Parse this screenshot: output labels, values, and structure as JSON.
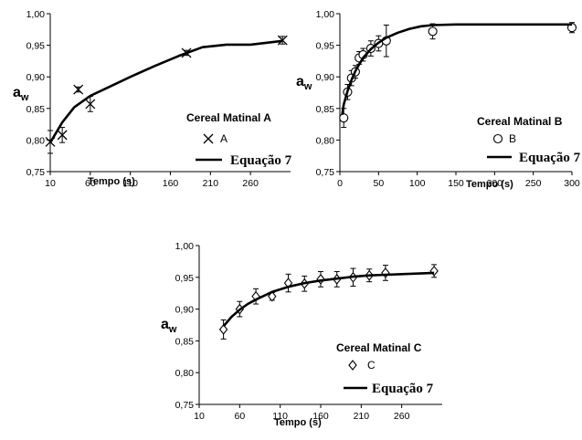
{
  "chart_data": [
    {
      "panel": "A",
      "type": "scatter",
      "xlabel": "Tempo (s)",
      "ylabel_main": "a",
      "ylabel_sub": "w",
      "xlim": [
        10,
        310
      ],
      "ylim": [
        0.75,
        1.0
      ],
      "xticks": [
        "10",
        "60",
        "110",
        "160",
        "210",
        "260"
      ],
      "yticks": [
        "0,75",
        "0,80",
        "0,85",
        "0,90",
        "0,95",
        "1,00"
      ],
      "legend_title": "Cereal Matinal A",
      "marker": "x",
      "series": [
        {
          "name": "A",
          "kind": "points",
          "x": [
            10,
            25,
            45,
            60,
            180,
            300
          ],
          "y": [
            0.797,
            0.808,
            0.88,
            0.857,
            0.938,
            0.958
          ],
          "err": [
            0.018,
            0.012,
            0.004,
            0.012,
            0.004,
            0.006
          ]
        },
        {
          "name": "Equação 7",
          "kind": "line",
          "x": [
            10,
            25,
            40,
            60,
            80,
            110,
            140,
            170,
            200,
            230,
            260,
            300
          ],
          "y": [
            0.796,
            0.828,
            0.852,
            0.87,
            0.882,
            0.9,
            0.917,
            0.933,
            0.947,
            0.951,
            0.951,
            0.957
          ]
        }
      ]
    },
    {
      "panel": "B",
      "type": "scatter",
      "xlabel": "Tempo (s)",
      "ylabel_main": "a",
      "ylabel_sub": "w",
      "xlim": [
        0,
        300
      ],
      "ylim": [
        0.75,
        1.0
      ],
      "xticks": [
        "0",
        "50",
        "100",
        "150",
        "200",
        "250",
        "300"
      ],
      "yticks": [
        "0,75",
        "0,80",
        "0,85",
        "0,90",
        "0,95",
        "1,00"
      ],
      "legend_title": "Cereal Matinal B",
      "marker": "o",
      "series": [
        {
          "name": "B",
          "kind": "points",
          "x": [
            5,
            10,
            15,
            20,
            25,
            30,
            40,
            50,
            60,
            120,
            300
          ],
          "y": [
            0.835,
            0.876,
            0.898,
            0.908,
            0.93,
            0.935,
            0.945,
            0.953,
            0.957,
            0.972,
            0.978
          ],
          "err": [
            0.015,
            0.012,
            0.012,
            0.01,
            0.01,
            0.01,
            0.012,
            0.012,
            0.025,
            0.012,
            0.008
          ]
        },
        {
          "name": "Equação 7",
          "kind": "line",
          "x": [
            3,
            5,
            10,
            15,
            20,
            25,
            30,
            40,
            50,
            60,
            75,
            90,
            105,
            120,
            150,
            200,
            250,
            300
          ],
          "y": [
            0.84,
            0.856,
            0.878,
            0.895,
            0.909,
            0.92,
            0.93,
            0.944,
            0.954,
            0.962,
            0.97,
            0.976,
            0.98,
            0.982,
            0.983,
            0.983,
            0.983,
            0.983
          ]
        }
      ]
    },
    {
      "panel": "C",
      "type": "scatter",
      "xlabel": "Tempo (s)",
      "ylabel_main": "a",
      "ylabel_sub": "w",
      "xlim": [
        10,
        310
      ],
      "ylim": [
        0.75,
        1.0
      ],
      "xticks": [
        "10",
        "60",
        "110",
        "160",
        "210",
        "260"
      ],
      "yticks": [
        "0,75",
        "0,80",
        "0,85",
        "0,90",
        "0,95",
        "1,00"
      ],
      "legend_title": "Cereal Matinal C",
      "marker": "diamond",
      "series": [
        {
          "name": "C",
          "kind": "points",
          "x": [
            40,
            60,
            80,
            100,
            120,
            140,
            160,
            180,
            200,
            220,
            240,
            300
          ],
          "y": [
            0.868,
            0.9,
            0.92,
            0.92,
            0.941,
            0.94,
            0.947,
            0.947,
            0.95,
            0.953,
            0.957,
            0.96
          ],
          "err": [
            0.015,
            0.012,
            0.012,
            0.006,
            0.014,
            0.012,
            0.012,
            0.012,
            0.014,
            0.01,
            0.012,
            0.01
          ]
        },
        {
          "name": "Equação 7",
          "kind": "line",
          "x": [
            40,
            50,
            60,
            70,
            80,
            100,
            120,
            140,
            160,
            180,
            200,
            220,
            240,
            260,
            300
          ],
          "y": [
            0.873,
            0.888,
            0.899,
            0.908,
            0.915,
            0.927,
            0.935,
            0.941,
            0.945,
            0.948,
            0.951,
            0.953,
            0.954,
            0.955,
            0.957
          ]
        }
      ]
    }
  ]
}
